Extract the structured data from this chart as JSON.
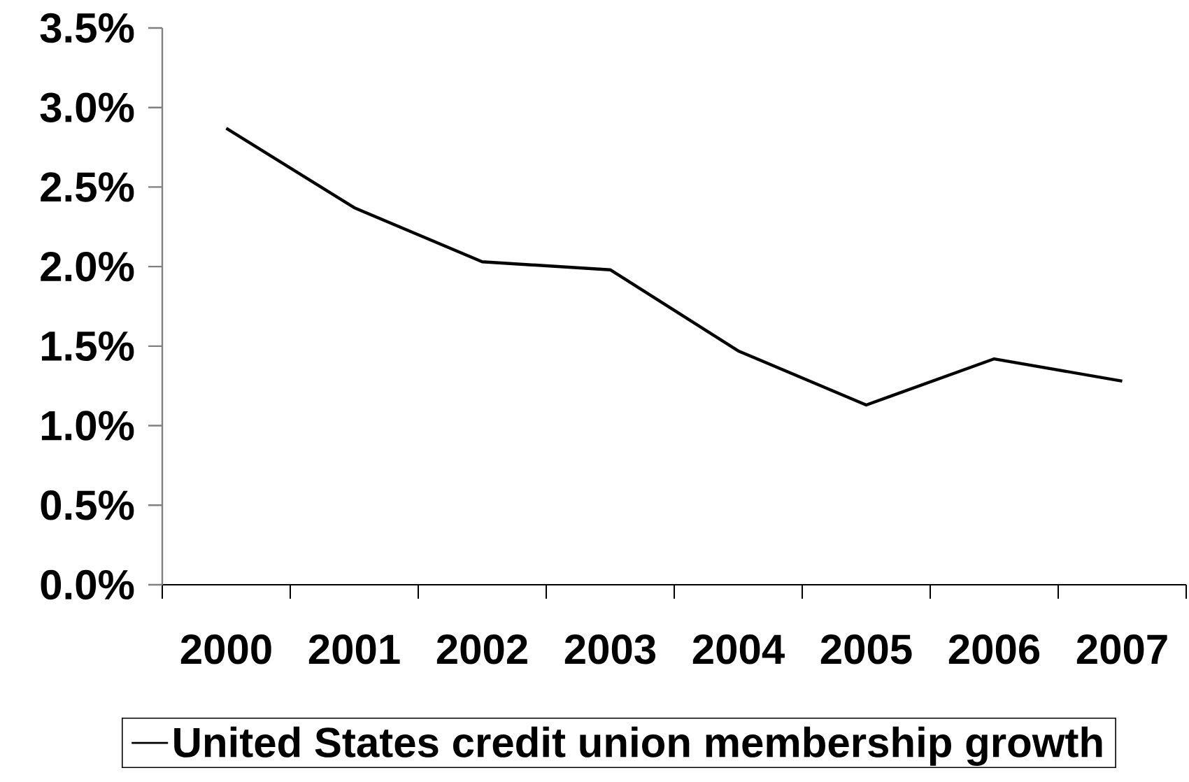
{
  "chart_data": {
    "type": "line",
    "categories": [
      "2000",
      "2001",
      "2002",
      "2003",
      "2004",
      "2005",
      "2006",
      "2007"
    ],
    "series": [
      {
        "name": "United States credit union membership growth",
        "color": "#000000",
        "values": [
          2.87,
          2.37,
          2.03,
          1.98,
          1.47,
          1.13,
          1.42,
          1.28
        ]
      }
    ],
    "ylim": [
      0,
      3.5
    ],
    "yticks": [
      {
        "value": 0,
        "label": "0.0%"
      },
      {
        "value": 0.5,
        "label": "0.5%"
      },
      {
        "value": 1,
        "label": "1.0%"
      },
      {
        "value": 1.5,
        "label": "1.5%"
      },
      {
        "value": 2,
        "label": "2.0%"
      },
      {
        "value": 2.5,
        "label": "2.5%"
      },
      {
        "value": 3,
        "label": "3.0%"
      },
      {
        "value": 3.5,
        "label": "3.5%"
      }
    ],
    "legend": "bottom"
  }
}
